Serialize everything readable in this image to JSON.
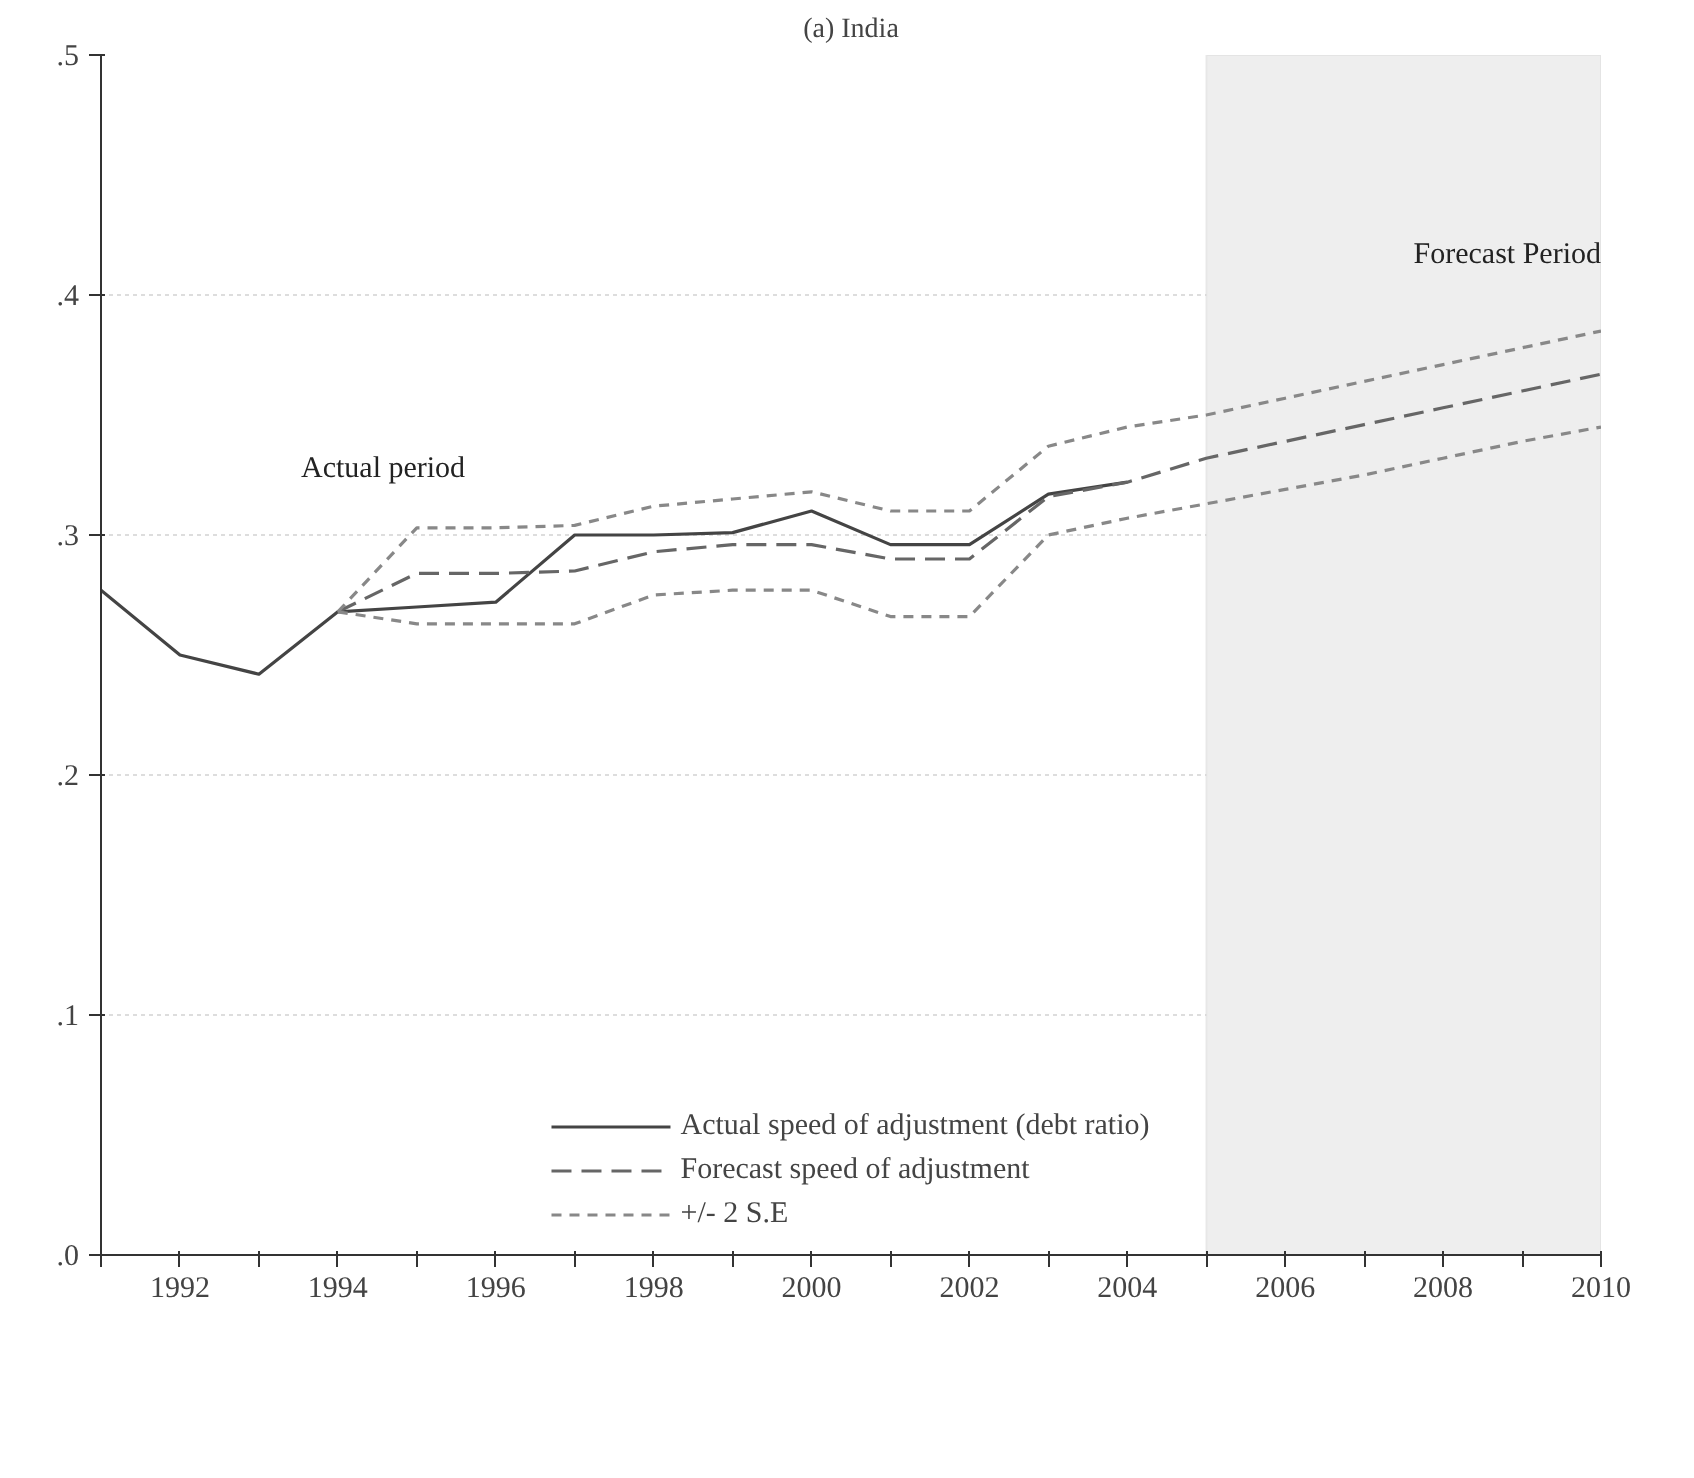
{
  "chart_data": {
    "type": "line",
    "title": "(a) India",
    "x": [
      1991,
      1992,
      1993,
      1994,
      1995,
      1996,
      1997,
      1998,
      1999,
      2000,
      2001,
      2002,
      2003,
      2004,
      2005,
      2006,
      2007,
      2008,
      2009,
      2010
    ],
    "series": [
      {
        "name": "Actual speed of adjustment (debt ratio)",
        "color": "#444444",
        "line_style": "solid",
        "values": [
          0.277,
          0.25,
          0.242,
          0.268,
          0.27,
          0.272,
          0.3,
          0.3,
          0.301,
          0.31,
          0.296,
          0.296,
          0.317,
          0.322,
          null,
          null,
          null,
          null,
          null,
          null
        ]
      },
      {
        "name": "Forecast speed of adjustment",
        "color": "#666666",
        "line_style": "dashed",
        "values": [
          null,
          null,
          null,
          0.268,
          0.284,
          0.284,
          0.285,
          0.293,
          0.296,
          0.296,
          0.29,
          0.29,
          0.316,
          0.322,
          0.332,
          0.339,
          0.346,
          0.353,
          0.36,
          0.367
        ]
      },
      {
        "name": "+/- 2 S.E",
        "color": "#888888",
        "line_style": "dotted",
        "values": [
          null,
          null,
          null,
          0.268,
          0.303,
          0.303,
          0.304,
          0.312,
          0.315,
          0.318,
          0.31,
          0.31,
          0.337,
          0.345,
          0.35,
          0.357,
          0.364,
          0.371,
          0.378,
          0.385
        ]
      },
      {
        "color": "#888888",
        "line_style": "dotted",
        "values": [
          null,
          null,
          null,
          0.268,
          0.263,
          0.263,
          0.263,
          0.275,
          0.277,
          0.277,
          0.266,
          0.266,
          0.3,
          0.307,
          0.313,
          0.319,
          0.325,
          0.332,
          0.339,
          0.345
        ]
      }
    ],
    "xlim": [
      1991,
      2010
    ],
    "ylim": [
      0,
      0.5
    ],
    "xticks": [
      {
        "value": 1991,
        "label": null
      },
      1992,
      {
        "value": 1993,
        "label": null
      },
      1994,
      {
        "value": 1995,
        "label": null
      },
      1996,
      {
        "value": 1997,
        "label": null
      },
      1998,
      {
        "value": 1999,
        "label": null
      },
      2000,
      {
        "value": 2001,
        "label": null
      },
      2002,
      {
        "value": 2003,
        "label": null
      },
      2004,
      {
        "value": 2005,
        "label": null
      },
      2006,
      {
        "value": 2007,
        "label": null
      },
      2008,
      {
        "value": 2009,
        "label": null
      },
      2010
    ],
    "yticks": [
      {
        "value": 0,
        "label": ".0"
      },
      {
        "value": 0.1,
        "label": ".1"
      },
      {
        "value": 0.2,
        "label": ".2"
      },
      {
        "value": 0.3,
        "label": ".3"
      },
      {
        "value": 0.4,
        "label": ".4"
      },
      {
        "value": 0.5,
        "label": ".5"
      }
    ],
    "bands": [
      {
        "axis": "x",
        "from": 2005,
        "to": 2010,
        "label": "Forecast Period",
        "color": "#eeeeee"
      }
    ],
    "annotations": [
      "Actual period"
    ],
    "grid": "y",
    "legend": "bottom",
    "marker": "none"
  }
}
